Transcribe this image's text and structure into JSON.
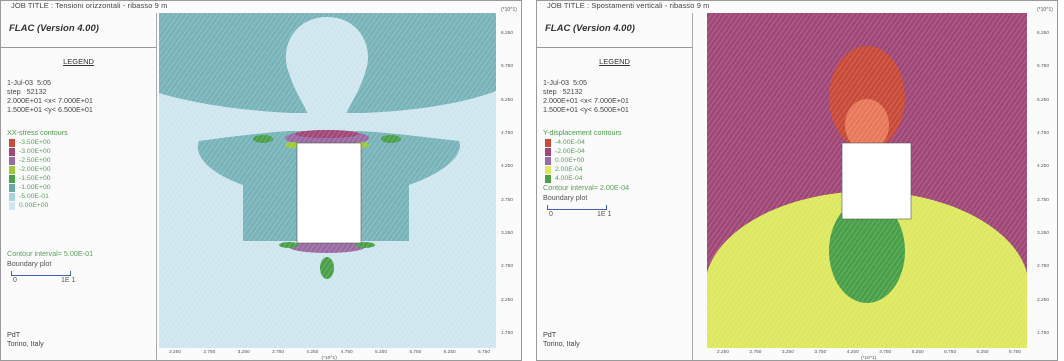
{
  "panels": [
    {
      "job_title": "JOB TITLE :  Tensioni orizzontali - ribasso 9 m",
      "top_note": "(*10^1)",
      "program": "FLAC (Version 4.00)",
      "legend_title": "LEGEND",
      "info": [
        "1-Jul-03  5:05",
        "step   52132",
        "2.000E+01 <x< 7.000E+01",
        "1.500E+01 <y< 6.500E+01"
      ],
      "contour_title": "XX-stress contours",
      "contours": [
        {
          "label": "-3.50E+00",
          "color": "#c84a38"
        },
        {
          "label": "-3.00E+00",
          "color": "#a04878"
        },
        {
          "label": "-2.50E+00",
          "color": "#9a6aa2"
        },
        {
          "label": "-2.00E+00",
          "color": "#9cc83a"
        },
        {
          "label": "-1.50E+00",
          "color": "#4aa048"
        },
        {
          "label": "-1.00E+00",
          "color": "#6aa8a2"
        },
        {
          "label": "-5.00E-01",
          "color": "#a8d4de"
        },
        {
          "label": "0.00E+00",
          "color": "#cfe8f0"
        }
      ],
      "interval": "Contour interval=  5.00E-01",
      "boundary": "Boundary plot",
      "scale_left": "0",
      "scale_right": "1E  1",
      "footer": [
        "PdT",
        "Torino, Italy"
      ],
      "y_ticks": [
        "6.250",
        "5.750",
        "5.250",
        "4.750",
        "4.250",
        "3.750",
        "3.250",
        "2.750",
        "2.250",
        "1.750"
      ],
      "x_ticks": [
        "2.250",
        "2.750",
        "3.250",
        "3.750",
        "4.250",
        "4.750",
        "5.250",
        "5.750",
        "6.250",
        "6.750"
      ],
      "x_note": "(*10^1)"
    },
    {
      "job_title": "JOB TITLE :  Spostamenti verticali - ribasso 9 m",
      "top_note": "(*10^1)",
      "program": "FLAC (Version 4.00)",
      "legend_title": "LEGEND",
      "info": [
        "1-Jul-03  5:05",
        "step   52132",
        "2.000E+01 <x< 7.000E+01",
        "1.500E+01 <y< 6.500E+01"
      ],
      "contour_title": "Y-displacement contours",
      "contours": [
        {
          "label": "-4.00E-04",
          "color": "#c84a38"
        },
        {
          "label": "-2.00E-04",
          "color": "#a04878"
        },
        {
          "label": "0.00E+00",
          "color": "#9a6aa2"
        },
        {
          "label": "2.00E-04",
          "color": "#dde860"
        },
        {
          "label": "4.00E-04",
          "color": "#4aa048"
        }
      ],
      "interval": "Contour interval=  2.00E-04",
      "boundary": "Boundary plot",
      "scale_left": "0",
      "scale_right": "1E  1",
      "footer": [
        "PdT",
        "Torino, Italy"
      ],
      "y_ticks": [
        "6.250",
        "5.750",
        "5.250",
        "4.750",
        "4.250",
        "3.750",
        "3.250",
        "2.750",
        "2.250",
        "1.750"
      ],
      "x_ticks": [
        "2.250",
        "2.750",
        "3.250",
        "3.750",
        "4.250",
        "4.750",
        "5.250",
        "5.750",
        "6.250",
        "6.750"
      ],
      "x_note": "(*10^1)"
    }
  ]
}
